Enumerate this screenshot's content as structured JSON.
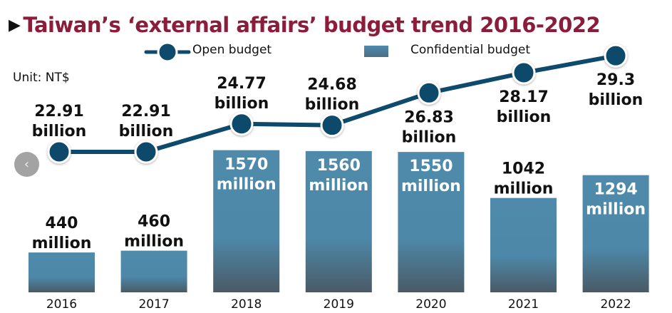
{
  "chart_data": {
    "type": "bar+line",
    "title": "Taiwan’s ‘external affairs’ budget trend 2016-2022",
    "unit_label": "Unit: NT$",
    "categories": [
      "2016",
      "2017",
      "2018",
      "2019",
      "2020",
      "2021",
      "2022"
    ],
    "series": [
      {
        "name": "Open budget",
        "type": "line",
        "unit": "billion",
        "values": [
          22.91,
          22.91,
          24.77,
          24.68,
          26.83,
          28.17,
          29.3
        ],
        "labels": [
          [
            "22.91",
            "billion"
          ],
          [
            "22.91",
            "billion"
          ],
          [
            "24.77",
            "billion"
          ],
          [
            "24.68",
            "billion"
          ],
          [
            "26.83",
            "billion"
          ],
          [
            "28.17",
            "billion"
          ],
          [
            "29.3",
            "billion"
          ]
        ],
        "label_positions": [
          "above",
          "above",
          "above",
          "above",
          "below",
          "below",
          "below"
        ],
        "color": "#0d4a6b"
      },
      {
        "name": "Confidential budget",
        "type": "bar",
        "unit": "million",
        "values": [
          440,
          460,
          1570,
          1560,
          1550,
          1042,
          1294
        ],
        "labels": [
          [
            "440",
            "million"
          ],
          [
            "460",
            "million"
          ],
          [
            "1570",
            "million"
          ],
          [
            "1560",
            "million"
          ],
          [
            "1550",
            "million"
          ],
          [
            "1042",
            "million"
          ],
          [
            "1294",
            "million"
          ]
        ],
        "label_positions": [
          "above",
          "above",
          "inside",
          "inside",
          "inside",
          "above",
          "inside"
        ],
        "color_top": "#4f8aab",
        "color_bottom": "#4a5a66"
      }
    ],
    "legend": [
      {
        "name": "Open budget",
        "marker": "line-circle"
      },
      {
        "name": "Confidential budget",
        "marker": "bar-swatch"
      }
    ],
    "legend_placement": "top-center",
    "grid": false,
    "xlabel": "",
    "ylabel": ""
  },
  "header": {
    "arrow_glyph": "▶",
    "title": "Taiwan’s ‘external affairs’ budget trend 2016-2022"
  },
  "legend": {
    "open_label": "Open budget",
    "confidential_label": "Confidential budget"
  },
  "unit": "Unit: NT$",
  "nav": {
    "prev_icon": "‹"
  },
  "colors": {
    "title": "#8b1c3a",
    "line": "#0d4a6b",
    "bar_top": "#4f8aab",
    "bar_bottom": "#4a5a66",
    "nav_button": "#a3a3a3"
  }
}
